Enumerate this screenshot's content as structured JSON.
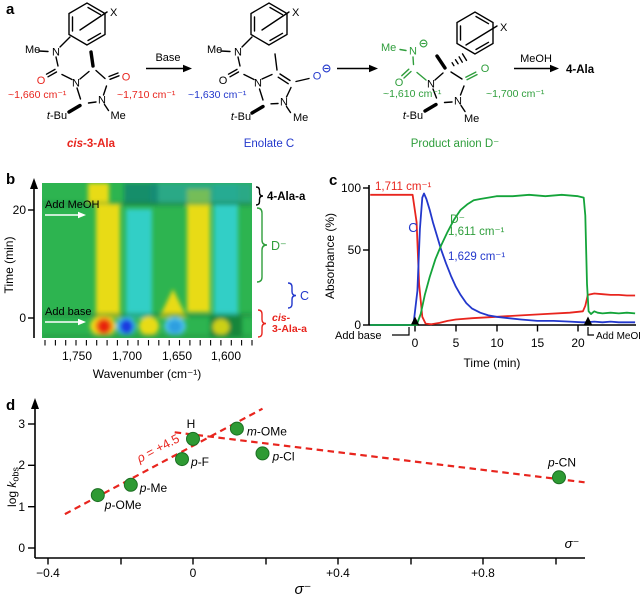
{
  "panels": {
    "a": "a",
    "b": "b",
    "c": "c",
    "d": "d"
  },
  "panel_a": {
    "base_label": "Base",
    "meoh_label": "MeOH",
    "product": "4-Ala",
    "s1": {
      "x": "X",
      "n_me": "Me",
      "n": "N",
      "o_amide": "O",
      "ring_n1": "N",
      "o_ring": "O",
      "ring_n3": "N",
      "n3_me": "Me",
      "tbu_t": "t",
      "tbu_rest": "-Bu",
      "freq1": "~1,660 cm⁻¹",
      "freq2": "~1,710 cm⁻¹",
      "cap_i": "cis",
      "cap_rest": "-3-Ala"
    },
    "s2": {
      "x": "X",
      "n_me": "Me",
      "n": "N",
      "o_amide": "O",
      "ring_n1": "N",
      "o_enolate": "O",
      "ring_n3": "N",
      "n3_me": "Me",
      "tbu_t": "t",
      "tbu_rest": "-Bu",
      "freq1": "~1,630 cm⁻¹",
      "cap": "Enolate C"
    },
    "s3": {
      "x": "X",
      "n_me": "Me",
      "n": "N",
      "o_amide": "O",
      "ring_n1": "N",
      "o_ring": "O",
      "ring_n3": "N",
      "n3_me": "Me",
      "tbu_t": "t",
      "tbu_rest": "-Bu",
      "freq1": "~1,610 cm⁻¹",
      "freq2": "~1,700 cm⁻¹",
      "cap": "Product anion D⁻"
    }
  },
  "panel_b": {
    "ylabel": "Time (min)",
    "ytick_20": "20",
    "ytick_0": "0",
    "xlabel": "Wavenumber (cm⁻¹)",
    "xticks": [
      "1,750",
      "1,700",
      "1,650",
      "1,600"
    ],
    "ann_meoh": "Add MeOH",
    "ann_base": "Add base",
    "sp_4ala": "4-Ala-a",
    "sp_d": "D⁻",
    "sp_c": "C",
    "sp_cis_i": "cis-",
    "sp_cis_rest": "3-Ala-a"
  },
  "panel_c": {
    "ylabel": "Absorbance (%)",
    "yticks": [
      "100",
      "50",
      "0"
    ],
    "xlabel": "Time (min)",
    "xticks": [
      "0",
      "5",
      "10",
      "15",
      "20"
    ],
    "lbl_red": "1,711 cm⁻¹",
    "lbl_c": "C",
    "lbl_d": "D⁻",
    "lbl_green": "1,611 cm⁻¹",
    "lbl_blue": "1,629 cm⁻¹",
    "ann_base": "Add base",
    "ann_meoh": "Add MeOH"
  },
  "panel_d": {
    "ylabel_pre": "log ",
    "ylabel_k": "k",
    "ylabel_sub": "obs",
    "yticks": [
      "3",
      "2",
      "1",
      "0"
    ],
    "xticks": [
      "−0.4",
      "0",
      "+0.4",
      "+0.8"
    ],
    "xlabel": "σ⁻",
    "xlabel_axis": "σ⁻",
    "rho_i": "ρ",
    "rho_rest": " = +4.5"
  },
  "colors": {
    "red": "#e8251e",
    "blue": "#2338cc",
    "green_text": "#2f9e3c",
    "curve_green": "#14a43a",
    "dot_green": "#2e9a33",
    "heat_bg": "#2db450",
    "heat_cyan": "#30cfc6",
    "heat_yellow": "#e8db16"
  },
  "chart_data": [
    {
      "type": "heatmap",
      "panel": "b",
      "xlabel": "Wavenumber (cm⁻¹)",
      "ylabel": "Time (min)",
      "x_tick_labels": [
        "1,750",
        "1,700",
        "1,650",
        "1,600"
      ],
      "y_tick_labels": [
        "20",
        "0"
      ],
      "x_axis_direction": "decreasing wavenumber left to right",
      "events": [
        {
          "label": "Add base",
          "time_min": 0
        },
        {
          "label": "Add MeOH",
          "time_min": 21
        }
      ],
      "species_regions": [
        {
          "label": "4-Ala-a",
          "time": "after MeOH addition (top strip)"
        },
        {
          "label": "D⁻",
          "time": "~1–21 min"
        },
        {
          "label": "C",
          "time": "~0–3 min"
        },
        {
          "label": "cis-3-Ala-a",
          "time": "before base addition (bottom strip)"
        }
      ]
    },
    {
      "type": "line",
      "panel": "c",
      "xlabel": "Time (min)",
      "ylabel": "Absorbance (%)",
      "xlim": [
        -5.5,
        27
      ],
      "ylim": [
        0,
        100
      ],
      "x_ticks": [
        0,
        5,
        10,
        15,
        20
      ],
      "y_ticks": [
        0,
        50,
        100
      ],
      "annotations": [
        {
          "label": "Add base",
          "time_min": 0
        },
        {
          "label": "Add MeOH",
          "time_min": 21.2
        }
      ],
      "series": [
        {
          "name": "1,711 cm⁻¹",
          "species": "cis-3-Ala-a",
          "color": "#e8251e",
          "points": [
            [
              -5.5,
              95
            ],
            [
              -0.3,
              95
            ],
            [
              0.2,
              75
            ],
            [
              0.5,
              30
            ],
            [
              0.9,
              6
            ],
            [
              1.3,
              1
            ],
            [
              2,
              0.5
            ],
            [
              3,
              1.5
            ],
            [
              4,
              3
            ],
            [
              5,
              4
            ],
            [
              7,
              5
            ],
            [
              10,
              6
            ],
            [
              13,
              7
            ],
            [
              16,
              8
            ],
            [
              19,
              9
            ],
            [
              20.6,
              10
            ],
            [
              20.9,
              14
            ],
            [
              21.2,
              22
            ],
            [
              22,
              23
            ],
            [
              23,
              22.5
            ],
            [
              24,
              22
            ],
            [
              25,
              22
            ],
            [
              26,
              21.5
            ],
            [
              27,
              21.5
            ]
          ]
        },
        {
          "name": "1,629 cm⁻¹",
          "species": "C",
          "color": "#2338cc",
          "points": [
            [
              -5.5,
              0
            ],
            [
              -0.2,
              0
            ],
            [
              0.3,
              25
            ],
            [
              0.6,
              70
            ],
            [
              0.9,
              93
            ],
            [
              1.1,
              96
            ],
            [
              1.4,
              92
            ],
            [
              1.8,
              84
            ],
            [
              2.2,
              75
            ],
            [
              2.7,
              65
            ],
            [
              3.2,
              55
            ],
            [
              3.8,
              45
            ],
            [
              4.4,
              36
            ],
            [
              5,
              28
            ],
            [
              5.6,
              22
            ],
            [
              6.3,
              16
            ],
            [
              7,
              12
            ],
            [
              8,
              9
            ],
            [
              9,
              7
            ],
            [
              10,
              6
            ],
            [
              11.5,
              5
            ],
            [
              13,
              4
            ],
            [
              15,
              3
            ],
            [
              17,
              3
            ],
            [
              19,
              2.5
            ],
            [
              20.5,
              2
            ],
            [
              21,
              2
            ],
            [
              22,
              2.5
            ],
            [
              23,
              2
            ],
            [
              24,
              2.5
            ],
            [
              25,
              2
            ],
            [
              26,
              2
            ],
            [
              27,
              2
            ]
          ]
        },
        {
          "name": "1,611 cm⁻¹",
          "species": "D⁻",
          "color": "#14a43a",
          "points": [
            [
              -5.5,
              0
            ],
            [
              0.2,
              0
            ],
            [
              0.7,
              8
            ],
            [
              1.2,
              22
            ],
            [
              1.8,
              35
            ],
            [
              2.5,
              48
            ],
            [
              3.2,
              58
            ],
            [
              4,
              68
            ],
            [
              4.8,
              77
            ],
            [
              5.6,
              84
            ],
            [
              6.4,
              88
            ],
            [
              7.2,
              91
            ],
            [
              8,
              92
            ],
            [
              9,
              93
            ],
            [
              10,
              94
            ],
            [
              12,
              94
            ],
            [
              14,
              95
            ],
            [
              16,
              94
            ],
            [
              18,
              95
            ],
            [
              20,
              94
            ],
            [
              20.7,
              93
            ],
            [
              20.9,
              80
            ],
            [
              21.1,
              30
            ],
            [
              21.3,
              10
            ],
            [
              21.6,
              8
            ],
            [
              22,
              10
            ],
            [
              22.4,
              9
            ],
            [
              23,
              8.5
            ],
            [
              24,
              9
            ],
            [
              25,
              8.5
            ],
            [
              26,
              9
            ],
            [
              27,
              8.5
            ]
          ]
        }
      ]
    },
    {
      "type": "scatter",
      "panel": "d",
      "xlabel": "σ⁻",
      "ylabel": "log kobs",
      "xlim": [
        -0.45,
        1.1
      ],
      "ylim": [
        -0.35,
        3.5
      ],
      "x_ticks": [
        -0.4,
        -0.2,
        0,
        0.2,
        0.4,
        0.6,
        0.8,
        1.0
      ],
      "y_ticks": [
        0,
        1,
        2,
        3
      ],
      "rho_label": "ρ = +4.5",
      "line_color": "#e8251e",
      "point_color": "#2e9a33",
      "point_stroke": "#1c6e22",
      "label_color": "#2f9e3c",
      "points": [
        {
          "label": "p-OMe",
          "sigma": -0.26,
          "logk": 1.28
        },
        {
          "label": "p-Me",
          "sigma": -0.17,
          "logk": 1.53
        },
        {
          "label": "p-F",
          "sigma": -0.03,
          "logk": 2.15
        },
        {
          "label": "H",
          "sigma": 0.0,
          "logk": 2.64
        },
        {
          "label": "m-OMe",
          "sigma": 0.12,
          "logk": 2.89
        },
        {
          "label": "p-Cl",
          "sigma": 0.19,
          "logk": 2.29
        },
        {
          "label": "p-CN",
          "sigma": 1.0,
          "logk": 1.71
        }
      ],
      "trendlines": [
        {
          "x1": -0.35,
          "y1": 0.82,
          "x2": 0.19,
          "y2": 3.37
        },
        {
          "x1": -0.05,
          "y1": 2.8,
          "x2": 1.07,
          "y2": 1.59
        }
      ]
    }
  ]
}
